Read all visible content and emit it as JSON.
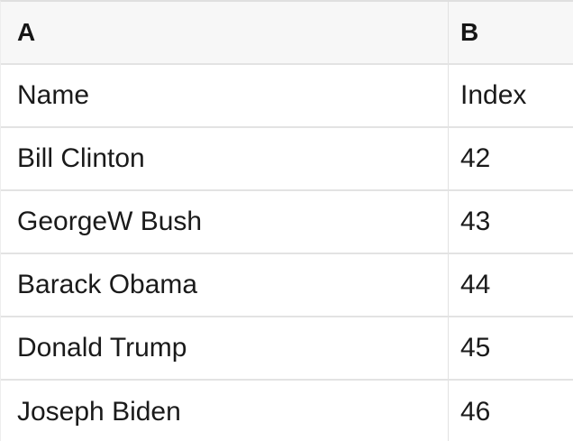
{
  "colors": {
    "header_bg": "#f7f7f7",
    "row_bg": "#ffffff",
    "grid_border": "#e2e2e2",
    "text": "#1a1a1a"
  },
  "table": {
    "column_headers": [
      {
        "label": "A"
      },
      {
        "label": "B"
      }
    ],
    "rows": [
      {
        "name": "Name",
        "index": "Index"
      },
      {
        "name": "Bill Clinton",
        "index": "42"
      },
      {
        "name": "GeorgeW Bush",
        "index": "43"
      },
      {
        "name": "Barack Obama",
        "index": "44"
      },
      {
        "name": "Donald Trump",
        "index": "45"
      },
      {
        "name": "Joseph Biden",
        "index": "46"
      }
    ]
  }
}
